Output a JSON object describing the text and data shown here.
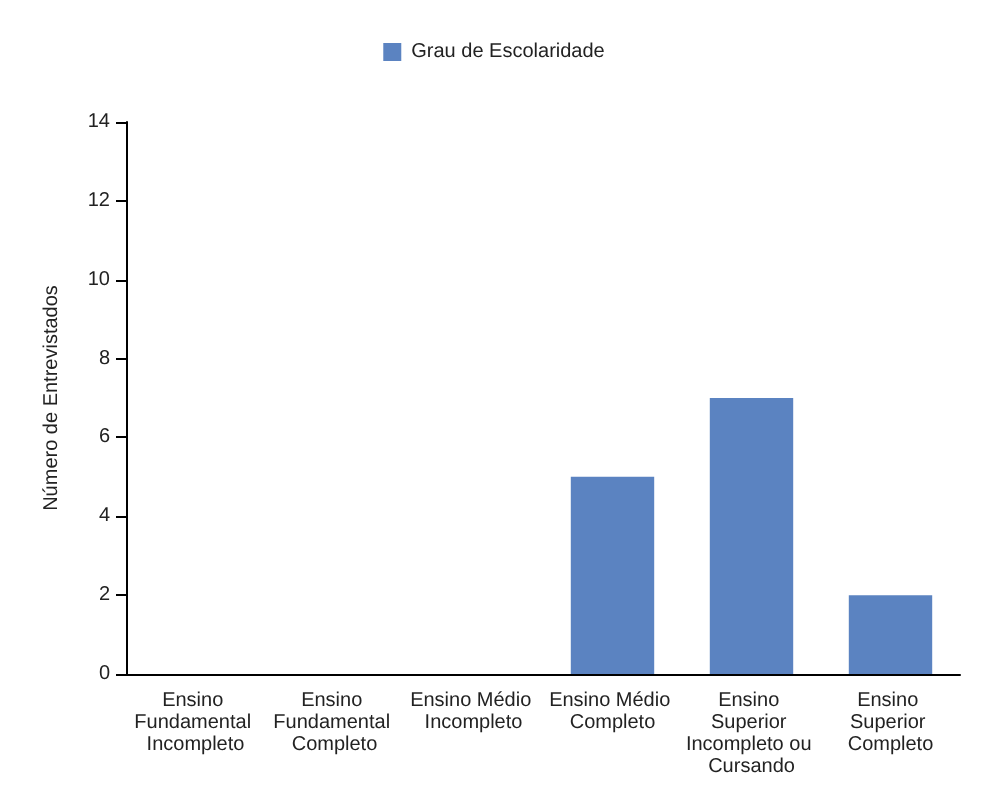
{
  "chart_data": {
    "type": "bar",
    "ylabel": "Número de Entrevistados",
    "categories": [
      "Ensino Fundamental Incompleto",
      "Ensino Fundamental Completo",
      "Ensino Médio Incompleto",
      "Ensino Médio Completo",
      "Ensino Superior Incompleto ou Cursando",
      "Ensino Superior Completo"
    ],
    "series": [
      {
        "name": "Grau de Escolaridade",
        "color": "#5b83c1",
        "values": [
          0,
          0,
          0,
          5,
          7,
          2
        ]
      }
    ],
    "ylim": [
      0,
      14
    ],
    "yticks": [
      0,
      2,
      4,
      6,
      8,
      10,
      12,
      14
    ],
    "grid": false,
    "legend": "top"
  }
}
